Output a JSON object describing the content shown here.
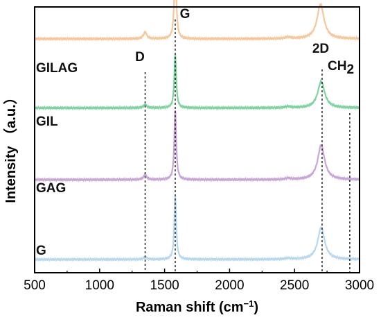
{
  "chart_data": {
    "type": "line",
    "xlabel_main": "Raman shift (cm",
    "xlabel_sup": "−1",
    "xlabel_close": ")",
    "ylabel": "Intensity （a.u.）",
    "xlim": [
      500,
      3000
    ],
    "xticks": [
      "500",
      "1000",
      "1500",
      "2000",
      "2500",
      "3000"
    ],
    "grid": false,
    "series": [
      {
        "name": "GILAG",
        "color": "#f6c79a",
        "baseline": 0.88,
        "peaks": [
          {
            "x": 1350,
            "h": 0.025,
            "w": 15
          },
          {
            "x": 1582,
            "h": 0.3,
            "w": 9
          },
          {
            "x": 2450,
            "h": 0.006,
            "w": 25
          },
          {
            "x": 2700,
            "h": 0.13,
            "w": 32
          }
        ]
      },
      {
        "name": "GIL",
        "color": "#7ed3a0",
        "baseline": 0.62,
        "peaks": [
          {
            "x": 1350,
            "h": 0.012,
            "w": 15
          },
          {
            "x": 1582,
            "h": 0.2,
            "w": 9
          },
          {
            "x": 2450,
            "h": 0.005,
            "w": 25
          },
          {
            "x": 2705,
            "h": 0.1,
            "w": 32
          }
        ]
      },
      {
        "name": "GAG",
        "color": "#c9a6d8",
        "baseline": 0.35,
        "peaks": [
          {
            "x": 1350,
            "h": 0.018,
            "w": 15
          },
          {
            "x": 1582,
            "h": 0.26,
            "w": 9
          },
          {
            "x": 2450,
            "h": 0.005,
            "w": 25
          },
          {
            "x": 2705,
            "h": 0.13,
            "w": 32
          }
        ]
      },
      {
        "name": "G",
        "color": "#b8d8f0",
        "baseline": 0.05,
        "peaks": [
          {
            "x": 1350,
            "h": 0.008,
            "w": 15
          },
          {
            "x": 1582,
            "h": 0.24,
            "w": 9
          },
          {
            "x": 2450,
            "h": 0.004,
            "w": 25
          },
          {
            "x": 2705,
            "h": 0.12,
            "w": 32
          }
        ]
      }
    ],
    "reference_lines": [
      {
        "label": "D",
        "x": 1350
      },
      {
        "label": "G",
        "x": 1582
      },
      {
        "label": "2D",
        "x": 2712
      },
      {
        "label": "CH",
        "label_sub": "2",
        "x": 2925
      }
    ]
  }
}
